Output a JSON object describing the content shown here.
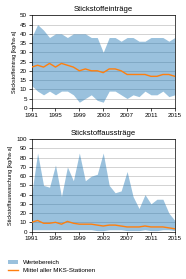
{
  "chart_data": [
    {
      "type": "area",
      "title": "Stickstoffeinträge",
      "ylabel": "Stickstoffeintrag [kg/ha·a]",
      "x": [
        1991,
        1992,
        1993,
        1994,
        1995,
        1996,
        1997,
        1998,
        1999,
        2000,
        2001,
        2002,
        2003,
        2004,
        2005,
        2006,
        2007,
        2008,
        2009,
        2010,
        2011,
        2012,
        2013,
        2014,
        2015
      ],
      "series": [
        {
          "name": "Wertebereich",
          "type": "range",
          "color": "#1f77b4",
          "low": [
            12,
            9,
            7,
            9,
            7,
            9,
            9,
            7,
            3,
            5,
            7,
            4,
            3,
            9,
            9,
            7,
            5,
            7,
            6,
            9,
            7,
            7,
            9,
            6,
            7
          ],
          "high": [
            38,
            45,
            42,
            38,
            40,
            40,
            38,
            40,
            40,
            40,
            38,
            38,
            30,
            38,
            38,
            36,
            38,
            38,
            36,
            36,
            38,
            38,
            38,
            36,
            38
          ]
        },
        {
          "name": "Mittel aller MKS-Stationen",
          "type": "line",
          "color": "#ff7f0e",
          "values": [
            22,
            23,
            22,
            24,
            22,
            24,
            23,
            22,
            20,
            21,
            20,
            20,
            19,
            21,
            21,
            20,
            18,
            18,
            18,
            18,
            17,
            17,
            18,
            18,
            17
          ]
        }
      ],
      "xlim": [
        1991,
        2015
      ],
      "xticks": [
        1991,
        1995,
        1999,
        2003,
        2007,
        2011,
        2015
      ],
      "ylim": [
        0,
        50
      ],
      "yticks": [
        0,
        5,
        10,
        15,
        20,
        25,
        30,
        35,
        40,
        45,
        50
      ],
      "grid": "y"
    },
    {
      "type": "area",
      "title": "Stickstoffaussträge",
      "ylabel": "Stickstoffauswaschung [kg/ha·a]",
      "x": [
        1991,
        1992,
        1993,
        1994,
        1995,
        1996,
        1997,
        1998,
        1999,
        2000,
        2001,
        2002,
        2003,
        2004,
        2005,
        2006,
        2007,
        2008,
        2009,
        2010,
        2011,
        2012,
        2013,
        2014,
        2015
      ],
      "series": [
        {
          "name": "Wertebereich",
          "type": "range",
          "color": "#1f77b4",
          "low": [
            2,
            2,
            2,
            2,
            2,
            2,
            2,
            2,
            2,
            2,
            2,
            1,
            1,
            2,
            2,
            2,
            1,
            1,
            1,
            2,
            1,
            1,
            2,
            2,
            1
          ],
          "high": [
            40,
            85,
            50,
            48,
            72,
            38,
            70,
            55,
            85,
            55,
            60,
            62,
            85,
            50,
            42,
            44,
            65,
            38,
            25,
            40,
            30,
            35,
            35,
            20,
            12
          ]
        },
        {
          "name": "Mittel aller MKS-Stationen",
          "type": "line",
          "color": "#ff7f0e",
          "values": [
            10,
            12,
            9,
            9,
            10,
            8,
            11,
            9,
            8,
            8,
            8,
            7,
            6,
            7,
            7,
            6,
            5,
            5,
            5,
            6,
            5,
            5,
            5,
            4,
            3
          ]
        }
      ],
      "xlim": [
        1991,
        2015
      ],
      "xticks": [
        1991,
        1995,
        1999,
        2003,
        2007,
        2011,
        2015
      ],
      "ylim": [
        0,
        100
      ],
      "yticks": [
        0,
        10,
        20,
        30,
        40,
        50,
        60,
        70,
        80,
        90,
        100
      ],
      "grid": "y",
      "legend": "lower left"
    }
  ]
}
